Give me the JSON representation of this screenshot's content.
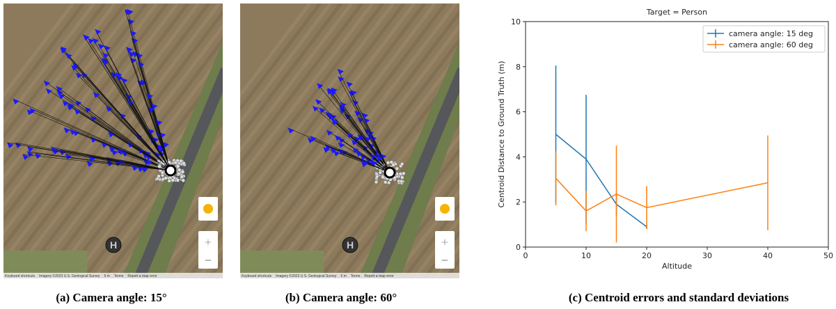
{
  "panels": [
    {
      "caption": "(a) Camera angle: 15°",
      "helipad": "H",
      "footer": [
        "Keyboard shortcuts",
        "Imagery ©2023 U.S. Geological Survey",
        "5 m",
        "Terms",
        "Report a map error"
      ]
    },
    {
      "caption": "(b) Camera angle: 60°",
      "helipad": "H",
      "footer": [
        "Keyboard shortcuts",
        "Imagery ©2023 U.S. Geological Survey",
        "5 m",
        "Terms",
        "Report a map error"
      ]
    }
  ],
  "chart_caption": "(c) Centroid errors and standard deviations",
  "chart_data": {
    "type": "errorbar",
    "title": "Target = Person",
    "x_label": "Altitude",
    "y_label": "Centroid Distance to Ground Truth (m)",
    "xlim": [
      0,
      50
    ],
    "xticks": [
      0,
      10,
      20,
      30,
      40,
      50
    ],
    "ylim": [
      0,
      10
    ],
    "yticks": [
      0,
      2,
      4,
      6,
      8,
      10
    ],
    "legend": "upper right",
    "series": [
      {
        "name": "camera angle: 15 deg",
        "color": "#1f77b4",
        "x": [
          5,
          10,
          15,
          20
        ],
        "values": [
          5.0,
          3.9,
          1.9,
          0.9
        ],
        "errors": [
          3.05,
          2.85,
          0.5,
          0.1
        ]
      },
      {
        "name": "camera angle: 60 deg",
        "color": "#ff7f0e",
        "x": [
          5,
          10,
          15,
          20,
          40
        ],
        "values": [
          3.05,
          1.6,
          2.35,
          1.75,
          2.85
        ],
        "errors": [
          1.2,
          0.9,
          2.15,
          0.95,
          2.1
        ]
      }
    ]
  }
}
